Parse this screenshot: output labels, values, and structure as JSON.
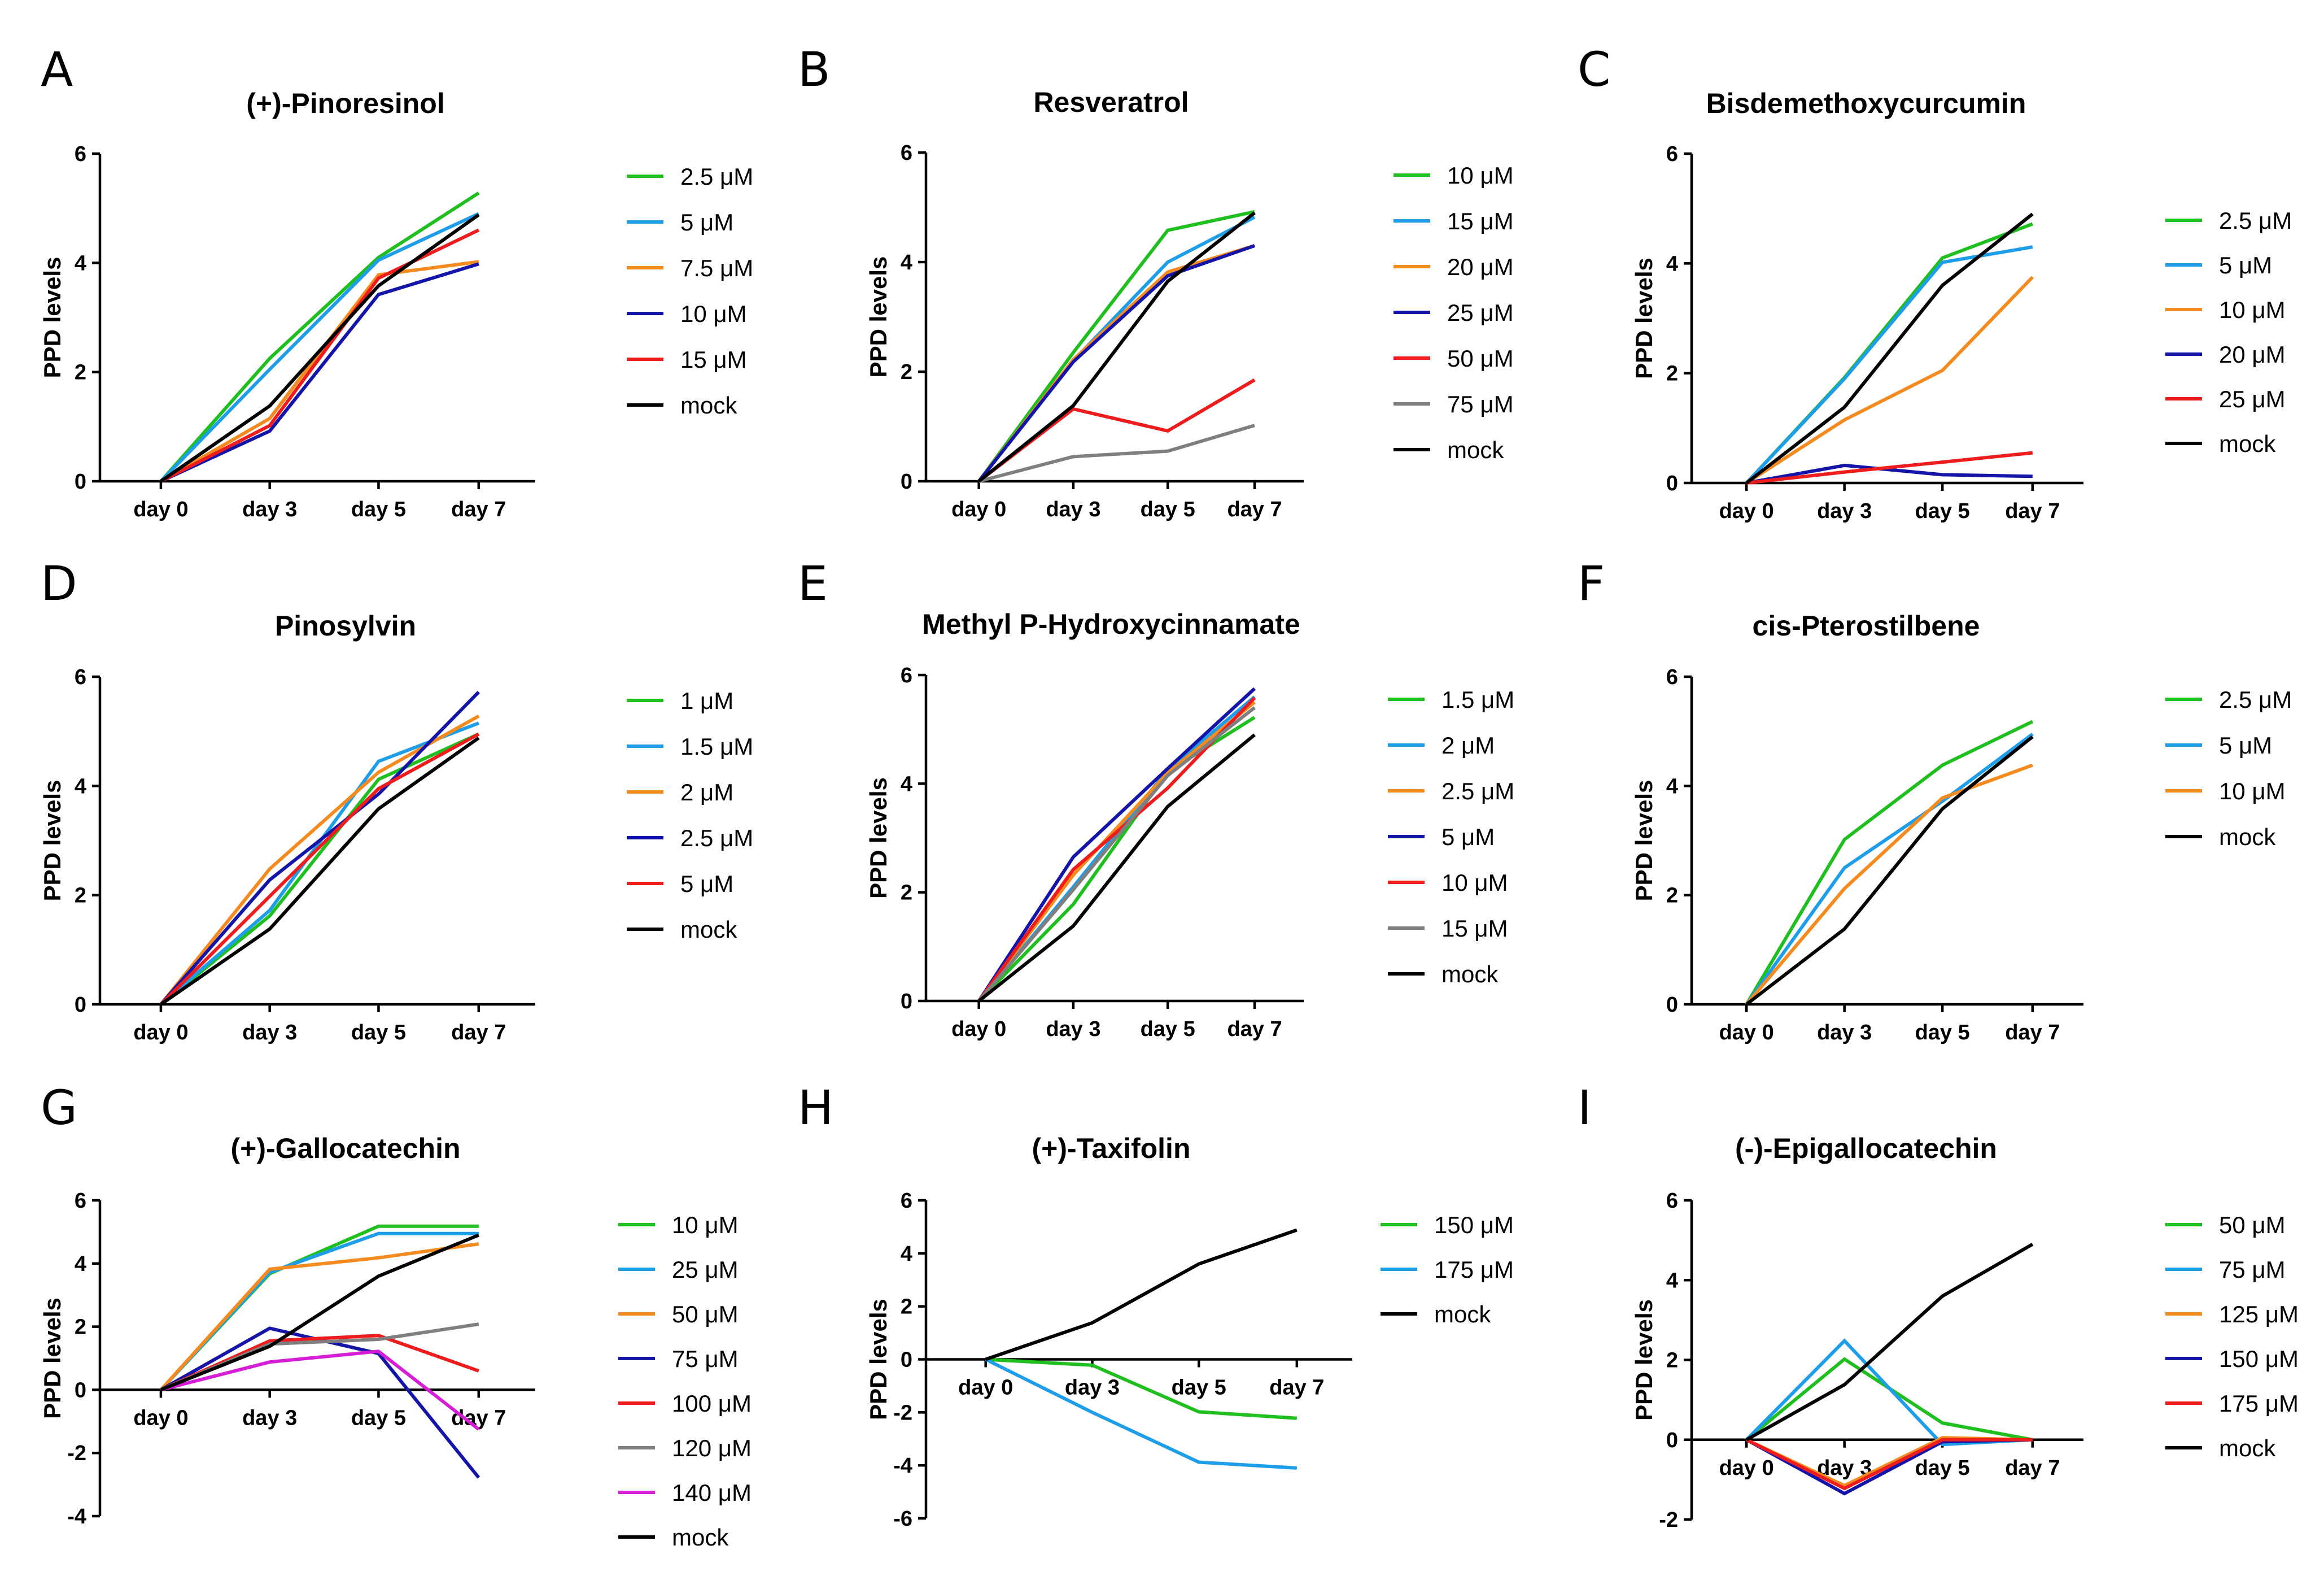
{
  "chart_data": [
    {
      "type": "line",
      "panel": "A",
      "title": "(+)-Pinoresinol",
      "xlabel": "",
      "ylabel": "PPD levels",
      "categories": [
        "day 0",
        "day 3",
        "day 5",
        "day 7"
      ],
      "ylim": [
        0,
        6
      ],
      "yticks": [
        "0",
        "2",
        "4",
        "6"
      ],
      "legend_position": "right",
      "series": [
        {
          "name": "2.5 μM",
          "color": "#1fbf1f",
          "values": [
            0,
            2.25,
            4.1,
            5.28
          ]
        },
        {
          "name": "5 μM",
          "color": "#1e9ee8",
          "values": [
            0,
            2.05,
            4.05,
            4.9
          ]
        },
        {
          "name": "7.5 μM",
          "color": "#f58a1f",
          "values": [
            0,
            1.15,
            3.78,
            4.02
          ]
        },
        {
          "name": "10 μM",
          "color": "#1414a8",
          "values": [
            0,
            0.92,
            3.42,
            3.98
          ]
        },
        {
          "name": "15 μM",
          "color": "#ee1c1c",
          "values": [
            0,
            1.02,
            3.72,
            4.6
          ]
        },
        {
          "name": "mock",
          "color": "#000000",
          "values": [
            0,
            1.38,
            3.58,
            4.88
          ]
        }
      ]
    },
    {
      "type": "line",
      "panel": "B",
      "title": "Resveratrol",
      "xlabel": "",
      "ylabel": "PPD levels",
      "categories": [
        "day 0",
        "day 3",
        "day 5",
        "day 7"
      ],
      "ylim": [
        0,
        6
      ],
      "yticks": [
        "0",
        "2",
        "4",
        "6"
      ],
      "legend_position": "right",
      "series": [
        {
          "name": "10 μM",
          "color": "#1fbf1f",
          "values": [
            0,
            2.35,
            4.58,
            4.92
          ]
        },
        {
          "name": "15 μM",
          "color": "#1e9ee8",
          "values": [
            0,
            2.2,
            4.0,
            4.82
          ]
        },
        {
          "name": "20 μM",
          "color": "#f58a1f",
          "values": [
            0,
            2.22,
            3.82,
            4.3
          ]
        },
        {
          "name": "25 μM",
          "color": "#1414a8",
          "values": [
            0,
            2.18,
            3.75,
            4.3
          ]
        },
        {
          "name": "50 μM",
          "color": "#ee1c1c",
          "values": [
            0,
            1.32,
            0.92,
            1.85
          ]
        },
        {
          "name": "75 μM",
          "color": "#7f7f7f",
          "values": [
            0,
            0.45,
            0.55,
            1.02
          ]
        },
        {
          "name": "mock",
          "color": "#000000",
          "values": [
            0,
            1.38,
            3.65,
            4.9
          ]
        }
      ]
    },
    {
      "type": "line",
      "panel": "C",
      "title": "Bisdemethoxycurcumin",
      "xlabel": "",
      "ylabel": "PPD levels",
      "categories": [
        "day 0",
        "day 3",
        "day 5",
        "day 7"
      ],
      "ylim": [
        0,
        6
      ],
      "yticks": [
        "0",
        "2",
        "4",
        "6"
      ],
      "legend_position": "right",
      "series": [
        {
          "name": "2.5 μM",
          "color": "#1fbf1f",
          "values": [
            0,
            1.92,
            4.1,
            4.72
          ]
        },
        {
          "name": "5 μM",
          "color": "#1e9ee8",
          "values": [
            0,
            1.9,
            4.02,
            4.3
          ]
        },
        {
          "name": "10 μM",
          "color": "#f58a1f",
          "values": [
            0,
            1.15,
            2.05,
            3.75
          ]
        },
        {
          "name": "20 μM",
          "color": "#1414a8",
          "values": [
            0,
            0.32,
            0.15,
            0.12
          ]
        },
        {
          "name": "25 μM",
          "color": "#ee1c1c",
          "values": [
            0,
            0.2,
            0.38,
            0.55
          ]
        },
        {
          "name": "mock",
          "color": "#000000",
          "values": [
            0,
            1.38,
            3.6,
            4.9
          ]
        }
      ]
    },
    {
      "type": "line",
      "panel": "D",
      "title": "Pinosylvin",
      "xlabel": "",
      "ylabel": "PPD levels",
      "categories": [
        "day 0",
        "day 3",
        "day 5",
        "day 7"
      ],
      "ylim": [
        0,
        6
      ],
      "yticks": [
        "0",
        "2",
        "4",
        "6"
      ],
      "legend_position": "right",
      "series": [
        {
          "name": "1 μM",
          "color": "#1fbf1f",
          "values": [
            0,
            1.62,
            4.12,
            4.95
          ]
        },
        {
          "name": "1.5 μM",
          "color": "#1e9ee8",
          "values": [
            0,
            1.72,
            4.45,
            5.15
          ]
        },
        {
          "name": "2 μM",
          "color": "#f58a1f",
          "values": [
            0,
            2.48,
            4.25,
            5.28
          ]
        },
        {
          "name": "2.5 μM",
          "color": "#1414a8",
          "values": [
            0,
            2.28,
            3.85,
            5.72
          ]
        },
        {
          "name": "5 μM",
          "color": "#ee1c1c",
          "values": [
            0,
            1.98,
            3.95,
            4.95
          ]
        },
        {
          "name": "mock",
          "color": "#000000",
          "values": [
            0,
            1.38,
            3.58,
            4.88
          ]
        }
      ]
    },
    {
      "type": "line",
      "panel": "E",
      "title": "Methyl P-Hydroxycinnamate",
      "xlabel": "",
      "ylabel": "PPD levels",
      "categories": [
        "day 0",
        "day 3",
        "day 5",
        "day 7"
      ],
      "ylim": [
        0,
        6
      ],
      "yticks": [
        "0",
        "2",
        "4",
        "6"
      ],
      "legend_position": "right",
      "series": [
        {
          "name": "1.5 μM",
          "color": "#1fbf1f",
          "values": [
            0,
            1.78,
            4.22,
            5.22
          ]
        },
        {
          "name": "2 μM",
          "color": "#1e9ee8",
          "values": [
            0,
            2.1,
            4.25,
            5.6
          ]
        },
        {
          "name": "2.5 μM",
          "color": "#f58a1f",
          "values": [
            0,
            2.32,
            4.2,
            5.5
          ]
        },
        {
          "name": "5 μM",
          "color": "#1414a8",
          "values": [
            0,
            2.65,
            4.28,
            5.75
          ]
        },
        {
          "name": "10 μM",
          "color": "#ee1c1c",
          "values": [
            0,
            2.42,
            3.92,
            5.58
          ]
        },
        {
          "name": "15 μM",
          "color": "#7f7f7f",
          "values": [
            0,
            2.05,
            4.15,
            5.4
          ]
        },
        {
          "name": "mock",
          "color": "#000000",
          "values": [
            0,
            1.38,
            3.58,
            4.9
          ]
        }
      ]
    },
    {
      "type": "line",
      "panel": "F",
      "title": "cis-Pterostilbene",
      "xlabel": "",
      "ylabel": "PPD levels",
      "categories": [
        "day 0",
        "day 3",
        "day 5",
        "day 7"
      ],
      "ylim": [
        0,
        6
      ],
      "yticks": [
        "0",
        "2",
        "4",
        "6"
      ],
      "legend_position": "right",
      "series": [
        {
          "name": "2.5 μM",
          "color": "#1fbf1f",
          "values": [
            0,
            3.02,
            4.38,
            5.18
          ]
        },
        {
          "name": "5 μM",
          "color": "#1e9ee8",
          "values": [
            0,
            2.5,
            3.72,
            4.95
          ]
        },
        {
          "name": "10 μM",
          "color": "#f58a1f",
          "values": [
            0,
            2.12,
            3.78,
            4.38
          ]
        },
        {
          "name": "mock",
          "color": "#000000",
          "values": [
            0,
            1.38,
            3.58,
            4.9
          ]
        }
      ]
    },
    {
      "type": "line",
      "panel": "G",
      "title": "(+)-Gallocatechin",
      "xlabel": "",
      "ylabel": "PPD levels",
      "categories": [
        "day 0",
        "day 3",
        "day 5",
        "day 7"
      ],
      "ylim": [
        -4,
        6
      ],
      "yticks": [
        "-4",
        "-2",
        "0",
        "2",
        "4",
        "6"
      ],
      "legend_position": "right",
      "series": [
        {
          "name": "10 μM",
          "color": "#1fbf1f",
          "values": [
            0,
            3.68,
            5.18,
            5.18
          ]
        },
        {
          "name": "25 μM",
          "color": "#1e9ee8",
          "values": [
            0,
            3.72,
            4.95,
            4.95
          ]
        },
        {
          "name": "50 μM",
          "color": "#f58a1f",
          "values": [
            0,
            3.82,
            4.18,
            4.62
          ]
        },
        {
          "name": "75 μM",
          "color": "#1414a8",
          "values": [
            0,
            1.95,
            1.15,
            -2.78
          ]
        },
        {
          "name": "100 μM",
          "color": "#ee1c1c",
          "values": [
            0,
            1.55,
            1.72,
            0.6
          ]
        },
        {
          "name": "120 μM",
          "color": "#7f7f7f",
          "values": [
            0,
            1.45,
            1.6,
            2.08
          ]
        },
        {
          "name": "140  μM",
          "color": "#d61ed6",
          "values": [
            0,
            0.88,
            1.22,
            -1.25
          ]
        },
        {
          "name": "mock",
          "color": "#000000",
          "values": [
            0,
            1.38,
            3.6,
            4.9
          ]
        }
      ]
    },
    {
      "type": "line",
      "panel": "H",
      "title": "(+)-Taxifolin",
      "xlabel": "",
      "ylabel": "PPD levels",
      "categories": [
        "day 0",
        "day 3",
        "day 5",
        "day 7"
      ],
      "ylim": [
        -6,
        6
      ],
      "yticks": [
        "-6",
        "-4",
        "-2",
        "0",
        "2",
        "4",
        "6"
      ],
      "legend_position": "right",
      "series": [
        {
          "name": "150 μM",
          "color": "#1fbf1f",
          "values": [
            0,
            -0.22,
            -1.98,
            -2.22
          ]
        },
        {
          "name": "175 μM",
          "color": "#1e9ee8",
          "values": [
            0,
            -2.0,
            -3.88,
            -4.1
          ]
        },
        {
          "name": "mock",
          "color": "#000000",
          "values": [
            0,
            1.38,
            3.6,
            4.88
          ]
        }
      ]
    },
    {
      "type": "line",
      "panel": "I",
      "title": "(-)-Epigallocatechin",
      "xlabel": "",
      "ylabel": "PPD levels",
      "categories": [
        "day 0",
        "day 3",
        "day 5",
        "day 7"
      ],
      "ylim": [
        -2,
        6
      ],
      "yticks": [
        "-2",
        "0",
        "2",
        "4",
        "6"
      ],
      "legend_position": "right",
      "series": [
        {
          "name": "50 μM",
          "color": "#1fbf1f",
          "values": [
            0,
            2.02,
            0.42,
            0
          ]
        },
        {
          "name": "75 μM",
          "color": "#1e9ee8",
          "values": [
            0,
            2.48,
            -0.12,
            0
          ]
        },
        {
          "name": "125 μM",
          "color": "#f58a1f",
          "values": [
            0,
            -1.15,
            0.05,
            0
          ]
        },
        {
          "name": "150 μM",
          "color": "#1414a8",
          "values": [
            0,
            -1.35,
            -0.05,
            0
          ]
        },
        {
          "name": "175 μM",
          "color": "#ee1c1c",
          "values": [
            0,
            -1.22,
            0,
            0
          ]
        },
        {
          "name": "mock",
          "color": "#000000",
          "values": [
            0,
            1.38,
            3.6,
            4.9
          ]
        }
      ]
    }
  ]
}
